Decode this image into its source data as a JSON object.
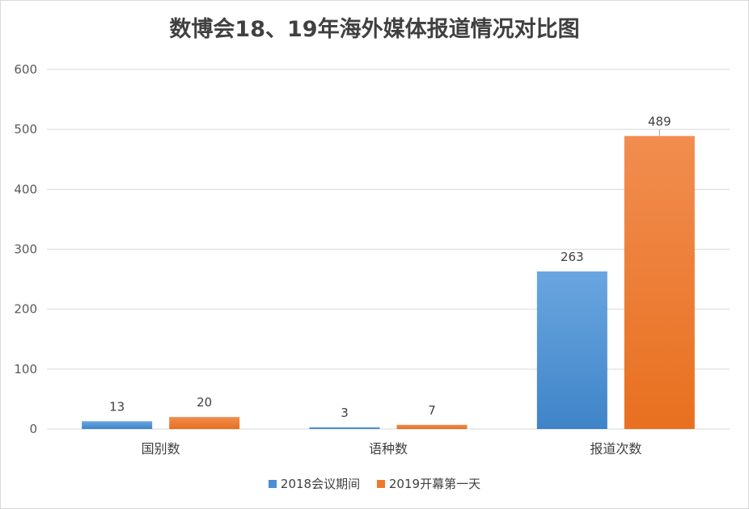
{
  "chart_data": {
    "type": "bar",
    "title": "数博会18、19年海外媒体报道情况对比图",
    "categories": [
      "国别数",
      "语种数",
      "报道次数"
    ],
    "series": [
      {
        "name": "2018会议期间",
        "values": [
          13,
          3,
          263
        ],
        "color": "#4a8fd3"
      },
      {
        "name": "2019开幕第一天",
        "values": [
          20,
          7,
          489
        ],
        "color": "#ef7a2c"
      }
    ],
    "ylim": [
      0,
      600
    ],
    "yticks": [
      0,
      100,
      200,
      300,
      400,
      500,
      600
    ],
    "grid": true,
    "legend": "bottom",
    "data_labels": true
  }
}
